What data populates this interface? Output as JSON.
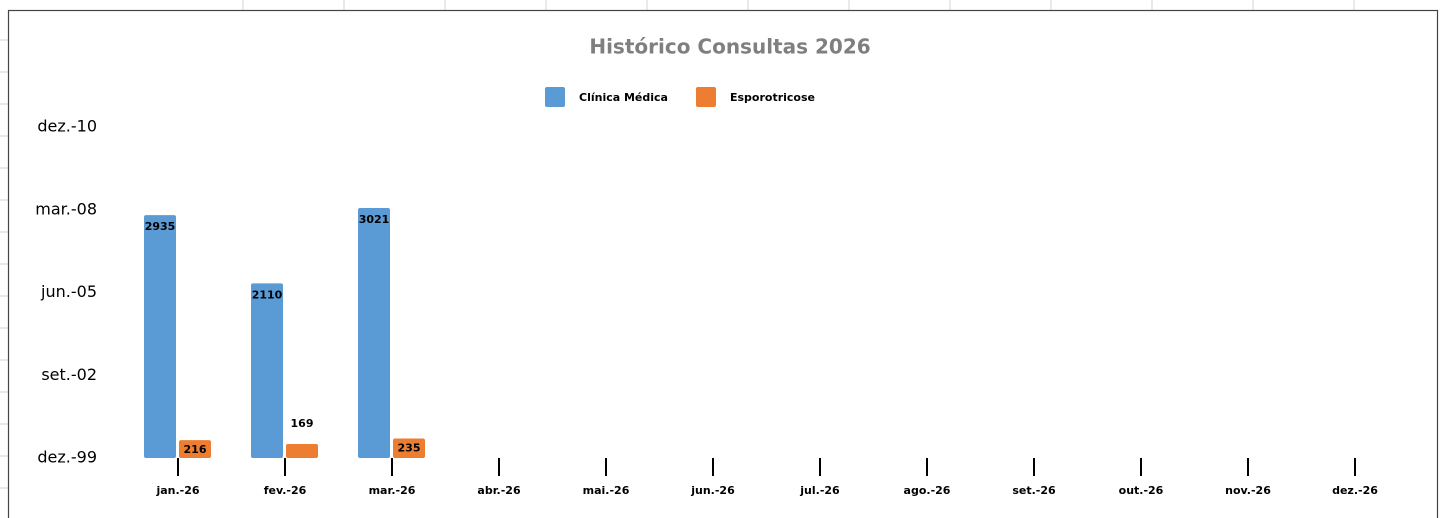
{
  "chart_data": {
    "type": "bar",
    "title": "Histórico Consultas 2026",
    "categories": [
      "jan.-26",
      "fev.-26",
      "mar.-26",
      "abr.-26",
      "mai.-26",
      "jun.-26",
      "jul.-26",
      "ago.-26",
      "set.-26",
      "out.-26",
      "nov.-26",
      "dez.-26"
    ],
    "series": [
      {
        "name": "Clínica Médica",
        "color": "#5b9bd5",
        "values": [
          2935,
          2110,
          3021,
          null,
          null,
          null,
          null,
          null,
          null,
          null,
          null,
          null
        ]
      },
      {
        "name": "Esporotricose",
        "color": "#ed7d31",
        "values": [
          216,
          169,
          235,
          null,
          null,
          null,
          null,
          null,
          null,
          null,
          null,
          null
        ]
      }
    ],
    "ylim": [
      0,
      4000
    ],
    "yticks": [
      {
        "value": 0,
        "label": "dez.-99"
      },
      {
        "value": 1000,
        "label": "set.-02"
      },
      {
        "value": 2000,
        "label": "jun.-05"
      },
      {
        "value": 3000,
        "label": "mar.-08"
      },
      {
        "value": 4000,
        "label": "dez.-10"
      }
    ],
    "legend": "top"
  }
}
